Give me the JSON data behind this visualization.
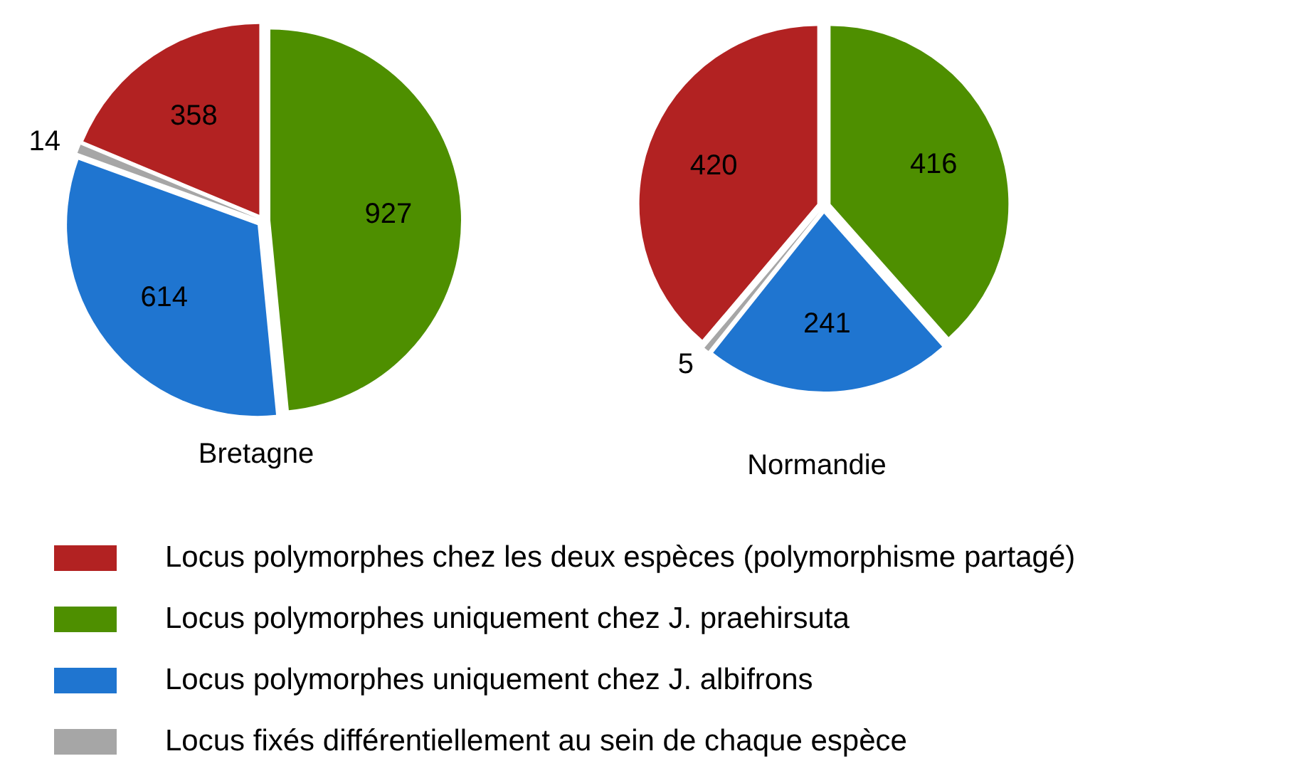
{
  "chart_data": [
    {
      "type": "pie",
      "title": "Bretagne",
      "categories": [
        "Locus polymorphes chez les deux espèces (polymorphisme partagé)",
        "Locus polymorphes uniquement chez J. praehirsuta",
        "Locus polymorphes uniquement chez J. albifrons",
        "Locus fixés différentiellement au sein de chaque espèce"
      ],
      "values": [
        358,
        927,
        614,
        14
      ],
      "colors": [
        "#b22222",
        "#4e8f00",
        "#1f75d0",
        "#a6a6a6"
      ],
      "data_labels": true,
      "legend": "bottom"
    },
    {
      "type": "pie",
      "title": "Normandie",
      "categories": [
        null,
        null,
        null,
        null
      ],
      "values": [
        420,
        416,
        241,
        5
      ],
      "colors": [
        "#b22222",
        "#4e8f00",
        "#1f75d0",
        "#a6a6a6"
      ],
      "data_labels": true
    }
  ]
}
